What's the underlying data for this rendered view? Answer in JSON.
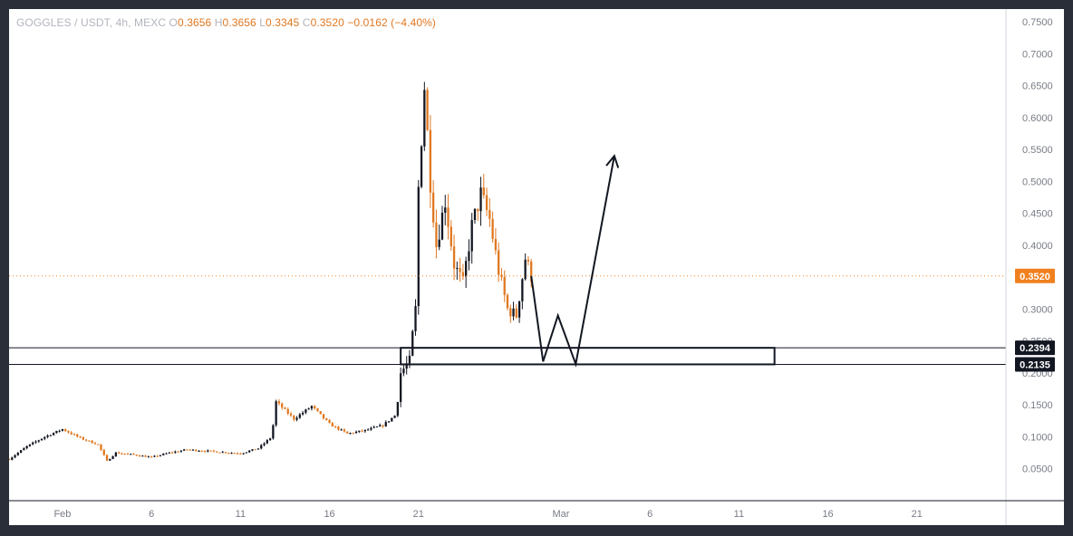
{
  "legend": {
    "symbol": "GOGGLES / USDT, 4h, MEXC",
    "open_label": "O",
    "open": "0.3656",
    "high_label": "H",
    "high": "0.3656",
    "low_label": "L",
    "low": "0.3345",
    "close_label": "C",
    "close": "0.3520",
    "change": "−0.0162 (−4.40%)"
  },
  "colors": {
    "up": "#131722",
    "down": "#e07820",
    "last_price": "#f0801e",
    "zone_tag": "#131722",
    "axis_text": "#787b86"
  },
  "chart_data": {
    "type": "candlestick",
    "title": "",
    "xlabel": "",
    "ylabel": "",
    "x_ticks": [
      "Feb",
      "6",
      "11",
      "16",
      "21",
      "Mar",
      "6",
      "11",
      "16",
      "21"
    ],
    "y_ticks": [
      "0.0500",
      "0.1000",
      "0.1500",
      "0.2000",
      "0.2500",
      "0.3000",
      "0.3500",
      "0.4000",
      "0.4500",
      "0.5000",
      "0.5500",
      "0.6000",
      "0.6500",
      "0.7000",
      "0.7500"
    ],
    "ylim": [
      0.0,
      0.77
    ],
    "x_range_days": [
      "2025-01-29",
      "2025-03-26"
    ],
    "grid": false,
    "last_price": {
      "value": 0.352,
      "label": "0.3520"
    },
    "support_zone": {
      "top": 0.2394,
      "bottom": 0.2135,
      "top_label": "0.2394",
      "bottom_label": "0.2135",
      "x_start": "2025-02-20",
      "x_end": "2025-03-13"
    },
    "price_path": [
      [
        "2025-01-29",
        0.065
      ],
      [
        "2025-01-30",
        0.085
      ],
      [
        "2025-01-31",
        0.1
      ],
      [
        "2025-02-01",
        0.112
      ],
      [
        "2025-02-02",
        0.098
      ],
      [
        "2025-02-03",
        0.088
      ],
      [
        "2025-02-03T12",
        0.062
      ],
      [
        "2025-02-04",
        0.075
      ],
      [
        "2025-02-05",
        0.072
      ],
      [
        "2025-02-06",
        0.068
      ],
      [
        "2025-02-07",
        0.075
      ],
      [
        "2025-02-08",
        0.08
      ],
      [
        "2025-02-09",
        0.078
      ],
      [
        "2025-02-10",
        0.076
      ],
      [
        "2025-02-11",
        0.074
      ],
      [
        "2025-02-12",
        0.082
      ],
      [
        "2025-02-12T18",
        0.1
      ],
      [
        "2025-02-13",
        0.155
      ],
      [
        "2025-02-14",
        0.128
      ],
      [
        "2025-02-15",
        0.148
      ],
      [
        "2025-02-16",
        0.12
      ],
      [
        "2025-02-17",
        0.105
      ],
      [
        "2025-02-18",
        0.11
      ],
      [
        "2025-02-19",
        0.118
      ],
      [
        "2025-02-19T18",
        0.135
      ],
      [
        "2025-02-20",
        0.2
      ],
      [
        "2025-02-20T12",
        0.22
      ],
      [
        "2025-02-20T20",
        0.3
      ],
      [
        "2025-02-21",
        0.49
      ],
      [
        "2025-02-21T08",
        0.65
      ],
      [
        "2025-02-21T16",
        0.5
      ],
      [
        "2025-02-22",
        0.4
      ],
      [
        "2025-02-22T12",
        0.47
      ],
      [
        "2025-02-23",
        0.37
      ],
      [
        "2025-02-23T12",
        0.34
      ],
      [
        "2025-02-24",
        0.43
      ],
      [
        "2025-02-24T12",
        0.48
      ],
      [
        "2025-02-25",
        0.44
      ],
      [
        "2025-02-25T12",
        0.36
      ],
      [
        "2025-02-26",
        0.3
      ],
      [
        "2025-02-26T12",
        0.29
      ],
      [
        "2025-02-27",
        0.38
      ],
      [
        "2025-02-27T08",
        0.352
      ]
    ],
    "drawing_path": [
      [
        "2025-02-27T08",
        0.352
      ],
      [
        "2025-02-28",
        0.218
      ],
      [
        "2025-02-28T20",
        0.29
      ],
      [
        "2025-03-01T20",
        0.214
      ],
      [
        "2025-03-04",
        0.54
      ]
    ]
  }
}
